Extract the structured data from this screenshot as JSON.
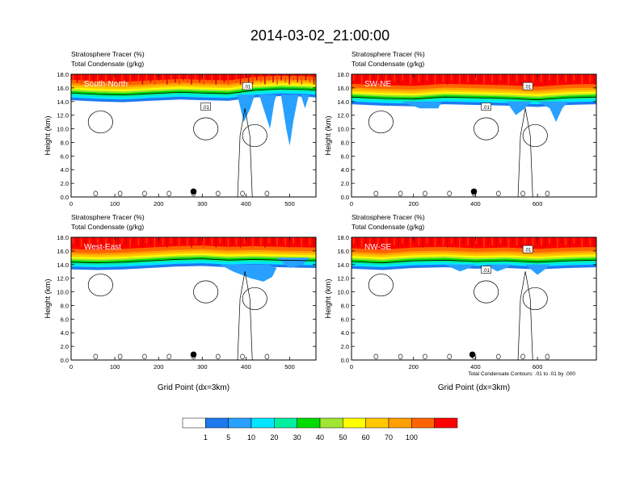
{
  "title": "2014-03-02_21:00:00",
  "colors": [
    "#ffffff",
    "#1e78f0",
    "#28a0ff",
    "#00e6ff",
    "#00f0a0",
    "#00dc00",
    "#a0e632",
    "#ffff00",
    "#ffc800",
    "#ffa000",
    "#ff6400",
    "#ff0000"
  ],
  "colorbar_labels": [
    "1",
    "5",
    "10",
    "20",
    "30",
    "40",
    "50",
    "60",
    "70",
    "100"
  ],
  "chart_data": [
    {
      "type": "heatmap",
      "label": "South-North",
      "header_line1": "Stratosphere Tracer   (%)",
      "header_line2": "Total Condensate   (g/kg)",
      "ylabel": "Height (km)",
      "xlabel": "",
      "ylim": [
        0,
        18
      ],
      "xlim": [
        0,
        560
      ],
      "xticks": [
        0,
        100,
        200,
        300,
        400,
        500
      ],
      "yticks": [
        "0.0",
        "2.0",
        "4.0",
        "6.0",
        "8.0",
        "10.0",
        "12.0",
        "14.0",
        "16.0",
        "18.0"
      ],
      "tropopause_km": [
        [
          0,
          15.2
        ],
        [
          60,
          15.0
        ],
        [
          120,
          14.9
        ],
        [
          180,
          15.1
        ],
        [
          250,
          15.3
        ],
        [
          300,
          15.2
        ],
        [
          360,
          15.1
        ],
        [
          420,
          15.6
        ],
        [
          480,
          15.8
        ],
        [
          540,
          15.7
        ],
        [
          560,
          15.6
        ]
      ],
      "blue_intrusions": [
        [
          [
            380,
            15
          ],
          [
            395,
            11
          ],
          [
            410,
            13
          ],
          [
            420,
            15
          ]
        ],
        [
          [
            430,
            15
          ],
          [
            445,
            12
          ],
          [
            455,
            10
          ],
          [
            465,
            14
          ],
          [
            470,
            15
          ]
        ],
        [
          [
            480,
            15
          ],
          [
            492,
            10
          ],
          [
            500,
            7.5
          ],
          [
            508,
            11
          ],
          [
            520,
            15
          ]
        ],
        [
          [
            525,
            15
          ],
          [
            535,
            13
          ],
          [
            545,
            15
          ]
        ]
      ],
      "contour_label": ".01",
      "markers": [
        280
      ]
    },
    {
      "type": "heatmap",
      "label": "SW-NE",
      "header_line1": "Stratosphere Tracer   (%)",
      "header_line2": "Total Condensate   (g/kg)",
      "ylabel": "Height (km)",
      "xlabel": "",
      "ylim": [
        0,
        18
      ],
      "xlim": [
        0,
        790
      ],
      "xticks": [
        0,
        200,
        400,
        600
      ],
      "yticks": [
        "0.0",
        "2.0",
        "4.0",
        "6.0",
        "8.0",
        "10.0",
        "12.0",
        "14.0",
        "16.0",
        "18.0"
      ],
      "tropopause_km": [
        [
          0,
          14.6
        ],
        [
          100,
          14.4
        ],
        [
          200,
          14.3
        ],
        [
          300,
          14.6
        ],
        [
          400,
          14.5
        ],
        [
          500,
          14.4
        ],
        [
          600,
          14.2
        ],
        [
          700,
          14.5
        ],
        [
          790,
          14.6
        ]
      ],
      "blue_intrusions": [
        [
          [
            160,
            14
          ],
          [
            220,
            13
          ],
          [
            280,
            13
          ],
          [
            290,
            14
          ]
        ],
        [
          [
            500,
            14
          ],
          [
            530,
            12
          ],
          [
            560,
            13
          ],
          [
            580,
            14
          ]
        ],
        [
          [
            600,
            14
          ],
          [
            640,
            13
          ],
          [
            660,
            11
          ],
          [
            680,
            13
          ],
          [
            700,
            14
          ]
        ]
      ],
      "contour_label": ".01",
      "markers": [
        395
      ]
    },
    {
      "type": "heatmap",
      "label": "West-East",
      "header_line1": "Stratosphere Tracer   (%)",
      "header_line2": "Total Condensate   (g/kg)",
      "ylabel": "Height (km)",
      "xlabel": "Grid Point (dx=3km)",
      "ylim": [
        0,
        18
      ],
      "xlim": [
        0,
        560
      ],
      "xticks": [
        0,
        100,
        200,
        300,
        400,
        500
      ],
      "yticks": [
        "0.0",
        "2.0",
        "4.0",
        "6.0",
        "8.0",
        "10.0",
        "12.0",
        "14.0",
        "16.0",
        "18.0"
      ],
      "tropopause_km": [
        [
          0,
          14.3
        ],
        [
          60,
          14.2
        ],
        [
          120,
          14.3
        ],
        [
          180,
          14.5
        ],
        [
          240,
          14.7
        ],
        [
          300,
          14.8
        ],
        [
          360,
          14.6
        ],
        [
          420,
          14.7
        ],
        [
          480,
          14.6
        ],
        [
          560,
          14.5
        ]
      ],
      "blue_intrusions": [
        [
          [
            340,
            14
          ],
          [
            370,
            13
          ],
          [
            410,
            12
          ],
          [
            440,
            11.5
          ],
          [
            460,
            12.2
          ],
          [
            470,
            13.5
          ],
          [
            450,
            14
          ]
        ],
        [
          [
            470,
            15
          ],
          [
            500,
            13.5
          ],
          [
            530,
            14
          ],
          [
            545,
            15
          ]
        ]
      ],
      "contour_label": "",
      "markers": [
        280
      ]
    },
    {
      "type": "heatmap",
      "label": "NW-SE",
      "header_line1": "Stratosphere Tracer   (%)",
      "header_line2": "Total Condensate   (g/kg)",
      "ylabel": "Height (km)",
      "xlabel": "Grid Point (dx=3km)",
      "ylim": [
        0,
        18
      ],
      "xlim": [
        0,
        790
      ],
      "xticks": [
        0,
        200,
        400,
        600
      ],
      "yticks": [
        "0.0",
        "2.0",
        "4.0",
        "6.0",
        "8.0",
        "10.0",
        "12.0",
        "14.0",
        "16.0",
        "18.0"
      ],
      "tropopause_km": [
        [
          0,
          14.4
        ],
        [
          100,
          14.2
        ],
        [
          200,
          14.5
        ],
        [
          300,
          14.6
        ],
        [
          400,
          14.4
        ],
        [
          500,
          14.5
        ],
        [
          600,
          14.3
        ],
        [
          700,
          14.5
        ],
        [
          790,
          14.6
        ]
      ],
      "blue_intrusions": [
        [
          [
            300,
            14
          ],
          [
            350,
            13
          ],
          [
            380,
            13.5
          ],
          [
            400,
            14
          ]
        ],
        [
          [
            430,
            14
          ],
          [
            470,
            13
          ],
          [
            500,
            13.5
          ],
          [
            520,
            14
          ]
        ],
        [
          [
            560,
            14
          ],
          [
            600,
            12.5
          ],
          [
            630,
            13.5
          ],
          [
            640,
            14
          ]
        ]
      ],
      "contour_label": ".01",
      "contour_note": "Total Condensate Contours: .01 to .01 by .000",
      "markers": [
        390
      ]
    }
  ]
}
